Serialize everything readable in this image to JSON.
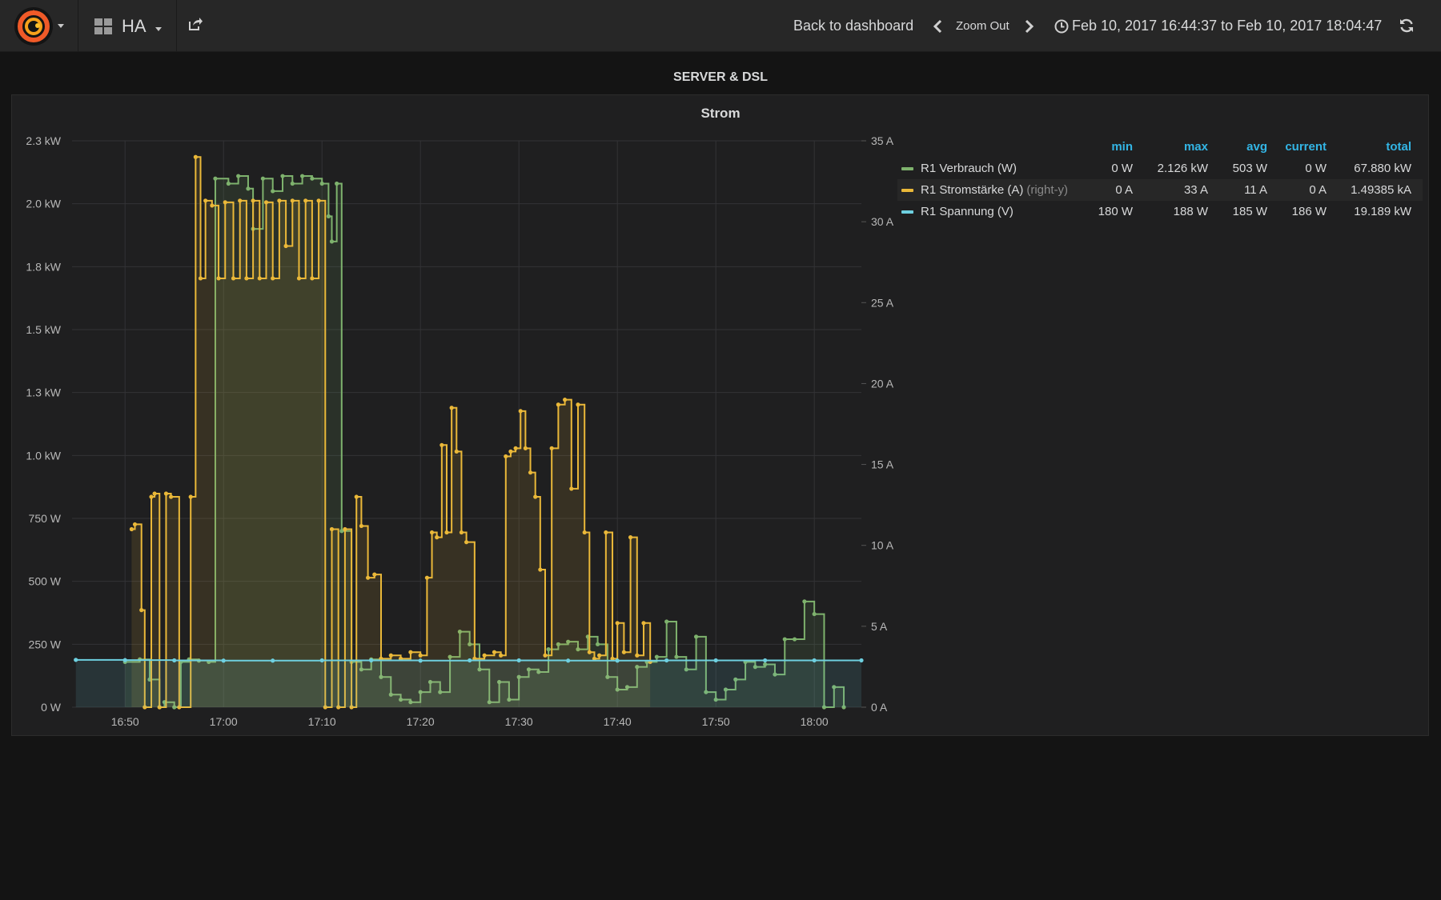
{
  "topbar": {
    "dashboard_name": "HA",
    "back_label": "Back to dashboard",
    "zoom_out_label": "Zoom Out",
    "time_range": "Feb 10, 2017 16:44:37 to Feb 10, 2017 18:04:47"
  },
  "row_title": "SERVER & DSL",
  "panel": {
    "title": "Strom"
  },
  "legend": {
    "columns": [
      "min",
      "max",
      "avg",
      "current",
      "total"
    ],
    "series": [
      {
        "name": "R1 Verbrauch (W)",
        "axis_tag": "",
        "color": "#7eb26d",
        "min": "0 W",
        "max": "2.126 kW",
        "avg": "503 W",
        "current": "0 W",
        "total": "67.880 kW"
      },
      {
        "name": "R1 Stromstärke (A)",
        "axis_tag": "(right-y)",
        "color": "#eab839",
        "min": "0 A",
        "max": "33 A",
        "avg": "11 A",
        "current": "0 A",
        "total": "1.49385 kA"
      },
      {
        "name": "R1 Spannung (V)",
        "axis_tag": "",
        "color": "#6ed0e0",
        "min": "180 W",
        "max": "188 W",
        "avg": "185 W",
        "current": "186 W",
        "total": "19.189 kW"
      }
    ]
  },
  "chart_data": {
    "type": "line",
    "title": "Strom",
    "x_ticks": [
      "16:50",
      "17:00",
      "17:10",
      "17:20",
      "17:30",
      "17:40",
      "17:50",
      "18:00"
    ],
    "x_range": [
      "16:44:37",
      "18:04:47"
    ],
    "y_left_ticks": [
      "0 W",
      "250 W",
      "500 W",
      "750 W",
      "1.0 kW",
      "1.3 kW",
      "1.5 kW",
      "1.8 kW",
      "2.0 kW",
      "2.3 kW"
    ],
    "y_left_range": [
      0,
      2250
    ],
    "y_right_ticks": [
      "0 A",
      "5 A",
      "10 A",
      "15 A",
      "20 A",
      "25 A",
      "30 A",
      "35 A"
    ],
    "y_right_range": [
      0,
      35
    ],
    "grid": true,
    "legend_position": "right",
    "series": [
      {
        "name": "R1 Verbrauch (W)",
        "axis": "left",
        "unit": "W",
        "color": "#7eb26d",
        "points": [
          [
            "16:50:00",
            180
          ],
          [
            "16:51:30",
            190
          ],
          [
            "16:52:30",
            110
          ],
          [
            "16:53:30",
            0
          ],
          [
            "16:54:00",
            20
          ],
          [
            "16:55:00",
            0
          ],
          [
            "16:55:40",
            180
          ],
          [
            "16:56:30",
            190
          ],
          [
            "16:57:30",
            185
          ],
          [
            "16:58:30",
            180
          ],
          [
            "16:59:10",
            2100
          ],
          [
            "17:00:30",
            2080
          ],
          [
            "17:01:30",
            2110
          ],
          [
            "17:02:30",
            2060
          ],
          [
            "17:03:00",
            1900
          ],
          [
            "17:04:00",
            2100
          ],
          [
            "17:05:00",
            2050
          ],
          [
            "17:06:00",
            2110
          ],
          [
            "17:07:00",
            2080
          ],
          [
            "17:08:00",
            2110
          ],
          [
            "17:09:00",
            2100
          ],
          [
            "17:10:00",
            2080
          ],
          [
            "17:10:40",
            1950
          ],
          [
            "17:11:00",
            1850
          ],
          [
            "17:11:30",
            2080
          ],
          [
            "17:12:00",
            700
          ],
          [
            "17:13:00",
            180
          ],
          [
            "17:14:00",
            150
          ],
          [
            "17:15:00",
            190
          ],
          [
            "17:16:00",
            120
          ],
          [
            "17:17:00",
            50
          ],
          [
            "17:18:00",
            30
          ],
          [
            "17:19:00",
            20
          ],
          [
            "17:20:00",
            60
          ],
          [
            "17:21:00",
            100
          ],
          [
            "17:22:00",
            60
          ],
          [
            "17:23:00",
            200
          ],
          [
            "17:24:00",
            300
          ],
          [
            "17:25:00",
            250
          ],
          [
            "17:26:00",
            150
          ],
          [
            "17:27:00",
            20
          ],
          [
            "17:28:00",
            100
          ],
          [
            "17:29:00",
            30
          ],
          [
            "17:30:00",
            120
          ],
          [
            "17:31:00",
            150
          ],
          [
            "17:32:00",
            140
          ],
          [
            "17:33:00",
            230
          ],
          [
            "17:34:00",
            250
          ],
          [
            "17:35:00",
            260
          ],
          [
            "17:36:00",
            230
          ],
          [
            "17:37:00",
            280
          ],
          [
            "17:38:00",
            250
          ],
          [
            "17:39:00",
            120
          ],
          [
            "17:40:00",
            70
          ],
          [
            "17:41:00",
            80
          ],
          [
            "17:42:00",
            160
          ],
          [
            "17:43:00",
            180
          ],
          [
            "17:44:00",
            200
          ],
          [
            "17:45:00",
            340
          ],
          [
            "17:46:00",
            200
          ],
          [
            "17:47:00",
            150
          ],
          [
            "17:48:00",
            280
          ],
          [
            "17:49:00",
            60
          ],
          [
            "17:50:00",
            30
          ],
          [
            "17:51:00",
            70
          ],
          [
            "17:52:00",
            110
          ],
          [
            "17:53:00",
            180
          ],
          [
            "17:54:00",
            160
          ],
          [
            "17:55:00",
            170
          ],
          [
            "17:56:00",
            130
          ],
          [
            "17:57:00",
            270
          ],
          [
            "17:58:00",
            270
          ],
          [
            "17:59:00",
            420
          ],
          [
            "18:00:00",
            370
          ],
          [
            "18:01:00",
            0
          ],
          [
            "18:02:00",
            80
          ],
          [
            "18:03:00",
            0
          ]
        ]
      },
      {
        "name": "R1 Stromstärke (A)",
        "axis": "right",
        "unit": "A",
        "color": "#eab839",
        "points": [
          [
            "16:50:40",
            11
          ],
          [
            "16:51:00",
            11.3
          ],
          [
            "16:51:40",
            6
          ],
          [
            "16:52:00",
            0
          ],
          [
            "16:52:40",
            13
          ],
          [
            "16:53:00",
            13.2
          ],
          [
            "16:53:30",
            0
          ],
          [
            "16:54:10",
            13.2
          ],
          [
            "16:54:40",
            13
          ],
          [
            "16:55:30",
            0
          ],
          [
            "16:56:40",
            13
          ],
          [
            "16:57:10",
            34
          ],
          [
            "16:57:40",
            26.5
          ],
          [
            "16:58:10",
            31.3
          ],
          [
            "16:58:50",
            31
          ],
          [
            "16:59:30",
            26.5
          ],
          [
            "17:00:10",
            31.2
          ],
          [
            "17:01:00",
            26.5
          ],
          [
            "17:01:40",
            31.3
          ],
          [
            "17:02:20",
            26.5
          ],
          [
            "17:03:00",
            31.3
          ],
          [
            "17:03:40",
            26.5
          ],
          [
            "17:04:20",
            31.2
          ],
          [
            "17:05:00",
            26.5
          ],
          [
            "17:05:40",
            31.3
          ],
          [
            "17:06:20",
            28.5
          ],
          [
            "17:07:00",
            31.3
          ],
          [
            "17:07:40",
            26.5
          ],
          [
            "17:08:20",
            31.3
          ],
          [
            "17:09:00",
            26.5
          ],
          [
            "17:09:40",
            31.3
          ],
          [
            "17:10:20",
            0
          ],
          [
            "17:11:00",
            11
          ],
          [
            "17:11:40",
            0
          ],
          [
            "17:12:20",
            11
          ],
          [
            "17:13:00",
            0
          ],
          [
            "17:13:30",
            13
          ],
          [
            "17:14:00",
            11.2
          ],
          [
            "17:14:40",
            8
          ],
          [
            "17:15:20",
            8.2
          ],
          [
            "17:16:00",
            3
          ],
          [
            "17:17:00",
            3.2
          ],
          [
            "17:18:00",
            3
          ],
          [
            "17:19:00",
            3.4
          ],
          [
            "17:20:00",
            3.2
          ],
          [
            "17:20:40",
            8
          ],
          [
            "17:21:10",
            10.8
          ],
          [
            "17:21:40",
            10.5
          ],
          [
            "17:22:10",
            16.2
          ],
          [
            "17:22:40",
            10.8
          ],
          [
            "17:23:10",
            18.5
          ],
          [
            "17:23:40",
            15.8
          ],
          [
            "17:24:10",
            10.8
          ],
          [
            "17:24:40",
            10.2
          ],
          [
            "17:25:30",
            3
          ],
          [
            "17:26:30",
            3.2
          ],
          [
            "17:27:30",
            3.4
          ],
          [
            "17:28:10",
            3.2
          ],
          [
            "17:28:40",
            15.5
          ],
          [
            "17:29:10",
            15.8
          ],
          [
            "17:29:40",
            16
          ],
          [
            "17:30:10",
            18.3
          ],
          [
            "17:30:40",
            16
          ],
          [
            "17:31:10",
            14.5
          ],
          [
            "17:31:40",
            13
          ],
          [
            "17:32:10",
            8.5
          ],
          [
            "17:32:40",
            3.2
          ],
          [
            "17:33:20",
            16
          ],
          [
            "17:34:00",
            18.7
          ],
          [
            "17:34:40",
            19
          ],
          [
            "17:35:20",
            13.5
          ],
          [
            "17:36:00",
            18.7
          ],
          [
            "17:36:40",
            10.8
          ],
          [
            "17:37:10",
            3.4
          ],
          [
            "17:37:40",
            3
          ],
          [
            "17:38:10",
            3.2
          ],
          [
            "17:38:50",
            10.8
          ],
          [
            "17:39:30",
            3
          ],
          [
            "17:40:00",
            5.2
          ],
          [
            "17:40:40",
            3.4
          ],
          [
            "17:41:20",
            10.5
          ],
          [
            "17:42:00",
            3.2
          ],
          [
            "17:42:40",
            5.2
          ],
          [
            "17:43:20",
            2.8
          ]
        ]
      },
      {
        "name": "R1 Spannung (V)",
        "axis": "left",
        "unit": "V",
        "color": "#6ed0e0",
        "points": [
          [
            "16:45:00",
            188
          ],
          [
            "16:50:00",
            187
          ],
          [
            "16:55:00",
            186
          ],
          [
            "17:00:00",
            185
          ],
          [
            "17:05:00",
            185
          ],
          [
            "17:10:00",
            186
          ],
          [
            "17:15:00",
            186
          ],
          [
            "17:20:00",
            185
          ],
          [
            "17:25:00",
            186
          ],
          [
            "17:30:00",
            186
          ],
          [
            "17:35:00",
            185
          ],
          [
            "17:40:00",
            185
          ],
          [
            "17:45:00",
            186
          ],
          [
            "17:50:00",
            186
          ],
          [
            "17:55:00",
            186
          ],
          [
            "18:00:00",
            186
          ],
          [
            "18:04:47",
            186
          ]
        ]
      }
    ]
  }
}
